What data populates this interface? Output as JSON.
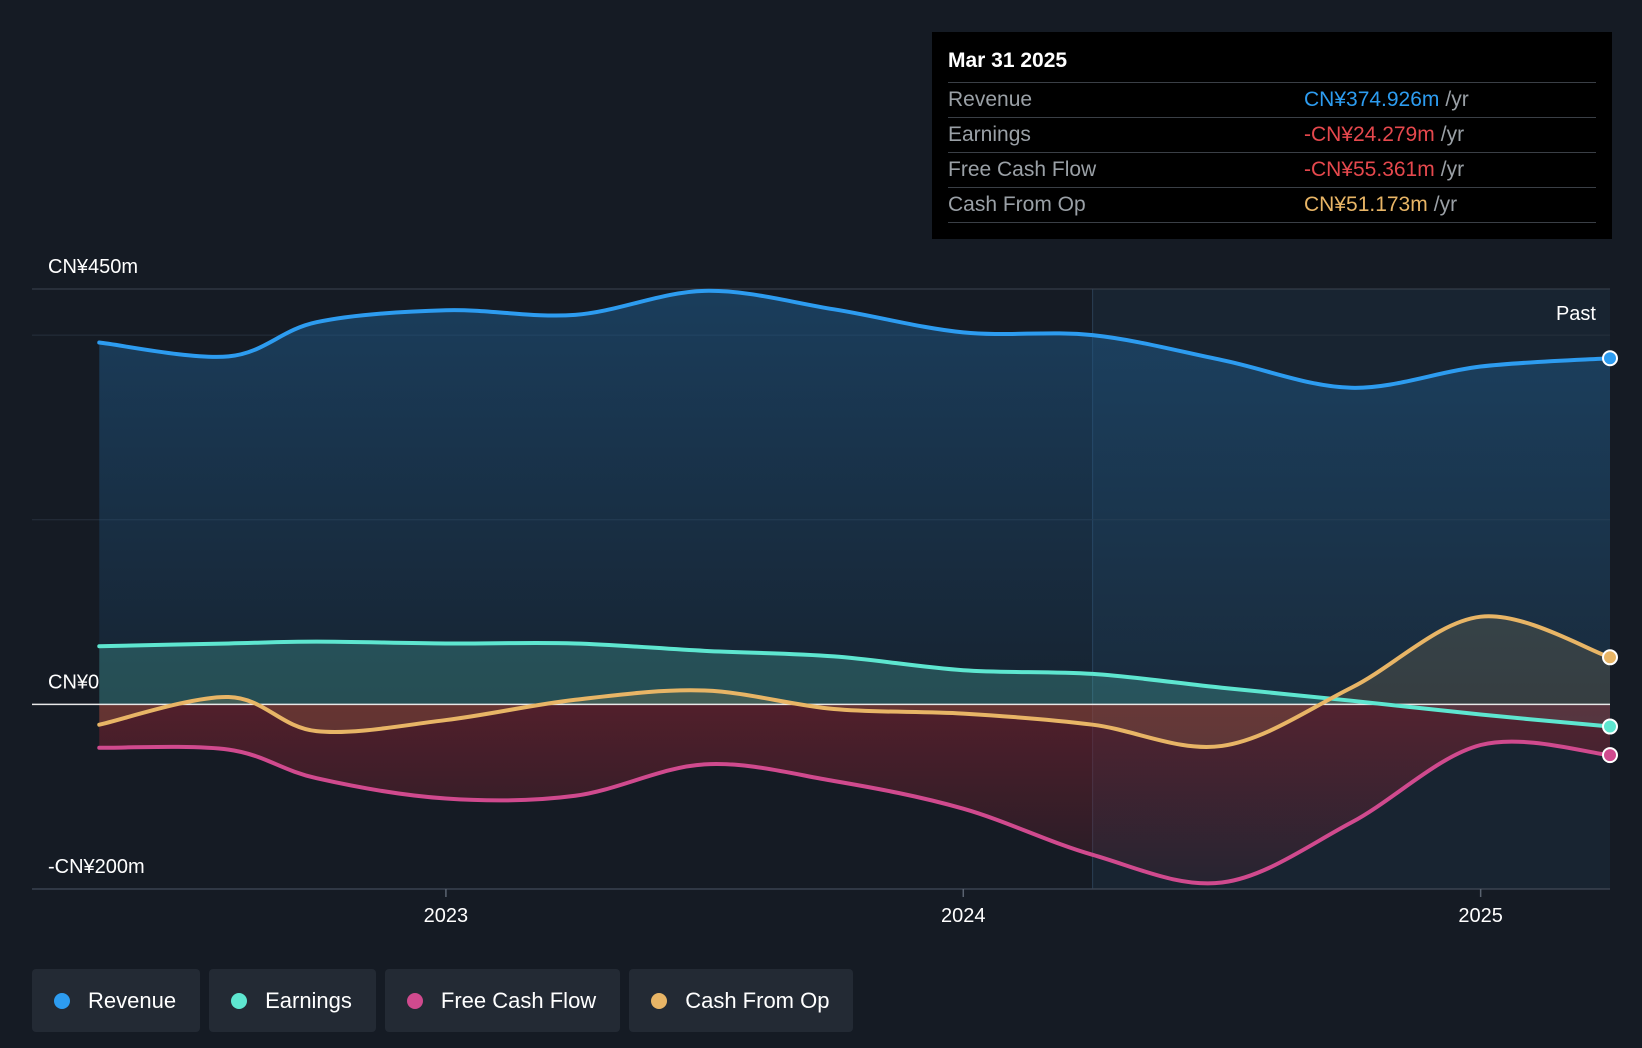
{
  "chart_data": {
    "type": "line",
    "title": "",
    "y_axis_labels": {
      "top": "CN¥450m",
      "zero": "CN¥0",
      "bottom": "-CN¥200m"
    },
    "ylim": [
      -200,
      450
    ],
    "x_ticks": [
      {
        "label": "2023",
        "x": 2023.0
      },
      {
        "label": "2024",
        "x": 2024.0
      },
      {
        "label": "2025",
        "x": 2025.0
      }
    ],
    "xlim": [
      2022.2,
      2025.25
    ],
    "past_label": "Past",
    "past_start_x": 2024.25,
    "series": [
      {
        "name": "Revenue",
        "color": "#2d9cf0",
        "x": [
          2022.33,
          2022.58,
          2022.75,
          2023.0,
          2023.25,
          2023.5,
          2023.75,
          2024.0,
          2024.25,
          2024.5,
          2024.75,
          2025.0,
          2025.25
        ],
        "values": [
          392,
          377,
          414,
          427,
          422,
          448,
          428,
          403,
          400,
          373,
          343,
          366,
          375
        ]
      },
      {
        "name": "Earnings",
        "color": "#5ee6d0",
        "x": [
          2022.33,
          2022.58,
          2022.75,
          2023.0,
          2023.25,
          2023.5,
          2023.75,
          2024.0,
          2024.25,
          2024.5,
          2024.75,
          2025.0,
          2025.25
        ],
        "values": [
          63,
          66,
          68,
          66,
          66,
          58,
          52,
          37,
          33,
          18,
          4,
          -11,
          -24
        ]
      },
      {
        "name": "Free Cash Flow",
        "color": "#d04a8e",
        "x": [
          2022.33,
          2022.58,
          2022.75,
          2023.0,
          2023.25,
          2023.5,
          2023.75,
          2024.0,
          2024.25,
          2024.5,
          2024.75,
          2025.0,
          2025.25
        ],
        "values": [
          -47,
          -49,
          -80,
          -102,
          -99,
          -65,
          -83,
          -113,
          -163,
          -193,
          -128,
          -44,
          -55
        ]
      },
      {
        "name": "Cash From Op",
        "color": "#e8b566",
        "x": [
          2022.33,
          2022.58,
          2022.75,
          2023.0,
          2023.25,
          2023.5,
          2023.75,
          2024.0,
          2024.25,
          2024.5,
          2024.75,
          2025.0,
          2025.25
        ],
        "values": [
          -22,
          8,
          -29,
          -17,
          5,
          15,
          -5,
          -10,
          -22,
          -45,
          18,
          95,
          51
        ]
      }
    ]
  },
  "tooltip": {
    "date": "Mar 31 2025",
    "unit": "/yr",
    "rows": [
      {
        "label": "Revenue",
        "value": "CN¥374.926m",
        "color": "#2d9cf0"
      },
      {
        "label": "Earnings",
        "value": "-CN¥24.279m",
        "color": "#e5484d"
      },
      {
        "label": "Free Cash Flow",
        "value": "-CN¥55.361m",
        "color": "#e5484d"
      },
      {
        "label": "Cash From Op",
        "value": "CN¥51.173m",
        "color": "#e8b566"
      }
    ]
  },
  "legend": [
    {
      "label": "Revenue",
      "color": "#2d9cf0"
    },
    {
      "label": "Earnings",
      "color": "#5ee6d0"
    },
    {
      "label": "Free Cash Flow",
      "color": "#d04a8e"
    },
    {
      "label": "Cash From Op",
      "color": "#e8b566"
    }
  ]
}
